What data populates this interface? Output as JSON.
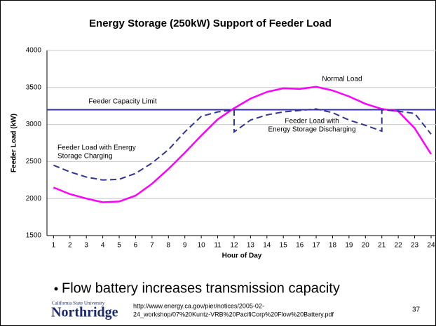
{
  "chart_data": {
    "type": "line",
    "title": "Energy Storage (250kW) Support of Feeder Load",
    "x_label": "Hour of Day",
    "y_label": "Feeder Load (kW)",
    "xlim": [
      0.6,
      24.3
    ],
    "ylim": [
      1500,
      4000
    ],
    "xticks": [
      1,
      2,
      3,
      4,
      5,
      6,
      7,
      8,
      9,
      10,
      11,
      12,
      13,
      14,
      15,
      16,
      17,
      18,
      19,
      20,
      21,
      22,
      23,
      24
    ],
    "yticks": [
      1500,
      2000,
      2500,
      3000,
      3500,
      4000
    ],
    "grid": true,
    "series": [
      {
        "color": "#ff00ff",
        "dashed": false,
        "x": [
          1,
          2,
          3,
          4,
          5,
          6,
          7,
          8,
          9,
          10,
          11,
          12,
          13,
          14,
          15,
          16,
          17,
          18,
          19,
          20,
          21,
          22,
          23,
          24
        ],
        "values": [
          2150,
          2060,
          2000,
          1950,
          1960,
          2040,
          2200,
          2400,
          2620,
          2850,
          3070,
          3220,
          3350,
          3440,
          3490,
          3480,
          3510,
          3460,
          3380,
          3280,
          3210,
          3180,
          2950,
          2600
        ]
      },
      {
        "color": "#333399",
        "dashed": true,
        "x": [
          1,
          2,
          3,
          4,
          5,
          6,
          7,
          8,
          9,
          10,
          11,
          12,
          12,
          13,
          14,
          15,
          16,
          17,
          18,
          19,
          20,
          21,
          21,
          22,
          23,
          24
        ],
        "values": [
          2450,
          2360,
          2290,
          2250,
          2260,
          2340,
          2480,
          2660,
          2900,
          3110,
          3170,
          3200,
          2900,
          3060,
          3130,
          3170,
          3190,
          3210,
          3160,
          3060,
          2990,
          2910,
          3200,
          3180,
          3150,
          2870
        ]
      }
    ],
    "capacity_limit": {
      "value": 3200,
      "color": "#333399"
    },
    "annotations": {
      "normal": [
        "Normal Load"
      ],
      "limit": [
        "Feeder Capacity Limit"
      ],
      "charging": [
        "Feeder Load with Energy",
        "Storage Charging"
      ],
      "discharging": [
        "Feeder Load with",
        "Energy Storage Discharging"
      ]
    }
  },
  "slide": {
    "bullet": "Flow battery increases transmission capacity",
    "university_top": "California State University",
    "university": "Northridge",
    "url": [
      "http://www.energy.ca.gov/pier/notices/2005-02-",
      "24_workshop/07%20Kuntz-VRB%20PacifiCorp%20Flow%20Battery.pdf"
    ],
    "page": "37"
  }
}
